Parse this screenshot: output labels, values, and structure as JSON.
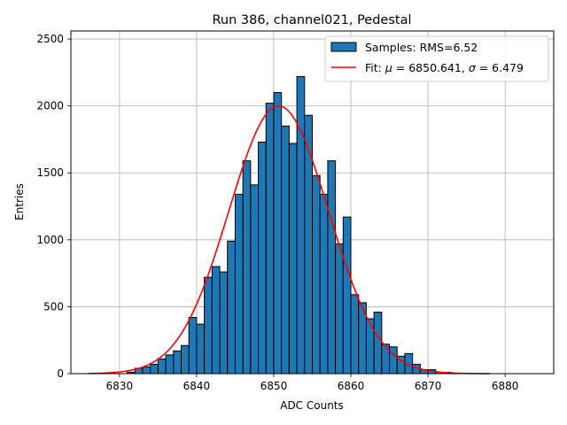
{
  "chart_data": {
    "type": "bar",
    "title": "Run 386, channel021, Pedestal",
    "xlabel": "ADC Counts",
    "ylabel": "Entries",
    "xlim": [
      6823.7,
      6886.3
    ],
    "ylim": [
      0,
      2560
    ],
    "xticks": [
      "6830",
      "6840",
      "6850",
      "6860",
      "6870",
      "6880"
    ],
    "yticks": [
      "0",
      "500",
      "1000",
      "1500",
      "2000",
      "2500"
    ],
    "grid": true,
    "legend_position": "top-right",
    "histogram": {
      "name": "Samples: RMS=6.52",
      "bin_start": 6830,
      "bin_width": 1,
      "counts": [
        0,
        10,
        40,
        50,
        70,
        110,
        140,
        170,
        210,
        420,
        370,
        720,
        800,
        760,
        990,
        1340,
        1590,
        1410,
        1730,
        2020,
        2100,
        1850,
        1720,
        2220,
        1930,
        1480,
        1340,
        1590,
        970,
        1170,
        590,
        530,
        410,
        460,
        220,
        200,
        130,
        150,
        70,
        30,
        30,
        10,
        10,
        0
      ]
    },
    "fit": {
      "name_prefix": "Fit: ",
      "mu_symbol": "μ",
      "mu_text": " = 6850.641, ",
      "sigma_symbol": "σ",
      "sigma_text": " = 6.479",
      "mu": 6850.641,
      "sigma": 6.479,
      "amplitude": 2000,
      "x_range": [
        6826,
        6878
      ]
    },
    "colors": {
      "bar_fill": "#1f77b4",
      "bar_edge": "#000000",
      "fit_line": "#ff0000",
      "grid": "#b0b0b0"
    }
  }
}
